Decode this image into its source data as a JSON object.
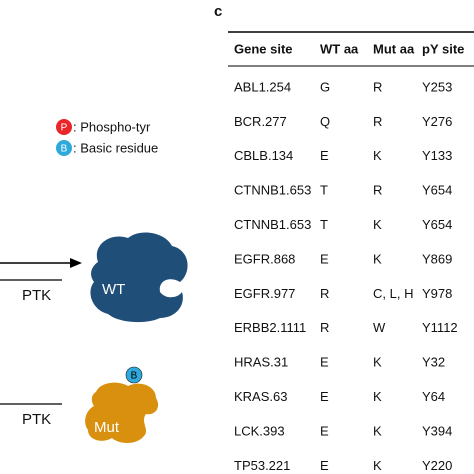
{
  "panel_label": "c",
  "legend": [
    {
      "symbol": "P",
      "label": ": Phospho-tyr"
    },
    {
      "symbol": "B",
      "label": ": Basic residue"
    }
  ],
  "diagram": {
    "enzyme": "PTK",
    "wt": "WT",
    "mut": "Mut"
  },
  "table": {
    "columns": [
      "Gene site",
      "WT aa",
      "Mut aa",
      "pY site"
    ],
    "rows": [
      [
        "ABL1.254",
        "G",
        "R",
        "Y253"
      ],
      [
        "BCR.277",
        "Q",
        "R",
        "Y276"
      ],
      [
        "CBLB.134",
        "E",
        "K",
        "Y133"
      ],
      [
        "CTNNB1.653",
        "T",
        "R",
        "Y654"
      ],
      [
        "CTNNB1.653",
        "T",
        "K",
        "Y654"
      ],
      [
        "EGFR.868",
        "E",
        "K",
        "Y869"
      ],
      [
        "EGFR.977",
        "R",
        "C, L, H",
        "Y978"
      ],
      [
        "ERBB2.1111",
        "R",
        "W",
        "Y1112"
      ],
      [
        "HRAS.31",
        "E",
        "K",
        "Y32"
      ],
      [
        "KRAS.63",
        "E",
        "K",
        "Y64"
      ],
      [
        "LCK.393",
        "E",
        "K",
        "Y394"
      ],
      [
        "TP53.221",
        "E",
        "K",
        "Y220"
      ]
    ]
  }
}
